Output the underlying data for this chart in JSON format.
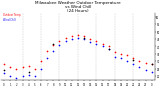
{
  "title": "Milwaukee Weather Outdoor Temperature\nvs Wind Chill\n(24 Hours)",
  "title_fontsize": 3.0,
  "background_color": "#ffffff",
  "grid_color": "#aaaaaa",
  "x_labels": [
    "0",
    "1",
    "2",
    "3",
    "4",
    "5",
    "6",
    "7",
    "8",
    "9",
    "10",
    "11",
    "12",
    "13",
    "14",
    "15",
    "16",
    "17",
    "18",
    "19",
    "20",
    "21",
    "22",
    "23",
    "0"
  ],
  "y_ticks": [
    20,
    25,
    30,
    35,
    40,
    45,
    50,
    55,
    60
  ],
  "ylim": [
    17,
    63
  ],
  "xlim": [
    -0.5,
    24.5
  ],
  "red_x": [
    0,
    1,
    2,
    3,
    4,
    5,
    6,
    7,
    8,
    9,
    10,
    11,
    12,
    13,
    14,
    15,
    16,
    17,
    18,
    19,
    20,
    21,
    22,
    23,
    24
  ],
  "red_y": [
    28,
    26,
    25,
    26,
    27,
    25,
    30,
    37,
    41,
    44,
    46,
    47,
    48,
    47,
    45,
    44,
    42,
    40,
    36,
    35,
    34,
    32,
    30,
    29,
    28
  ],
  "blue_x": [
    0,
    1,
    2,
    3,
    4,
    5,
    6,
    7,
    8,
    9,
    10,
    11,
    12,
    13,
    14,
    15,
    16,
    17,
    18,
    19,
    20,
    21,
    22,
    23,
    24
  ],
  "blue_y": [
    22,
    20,
    19,
    20,
    21,
    20,
    25,
    32,
    37,
    41,
    44,
    45,
    46,
    45,
    43,
    42,
    40,
    38,
    33,
    32,
    30,
    28,
    26,
    24,
    23
  ],
  "black_x": [
    0,
    4,
    8,
    13,
    17,
    21,
    24
  ],
  "black_y": [
    24,
    23,
    42,
    46,
    38,
    31,
    28
  ],
  "dot_size": 1.5,
  "legend_label_temp": "Outdoor Temp",
  "legend_label_chill": "Wind Chill",
  "legend_color_temp": "#ff0000",
  "legend_color_chill": "#0000ff",
  "vgrid_positions": [
    3,
    6,
    9,
    12,
    15,
    18,
    21
  ]
}
